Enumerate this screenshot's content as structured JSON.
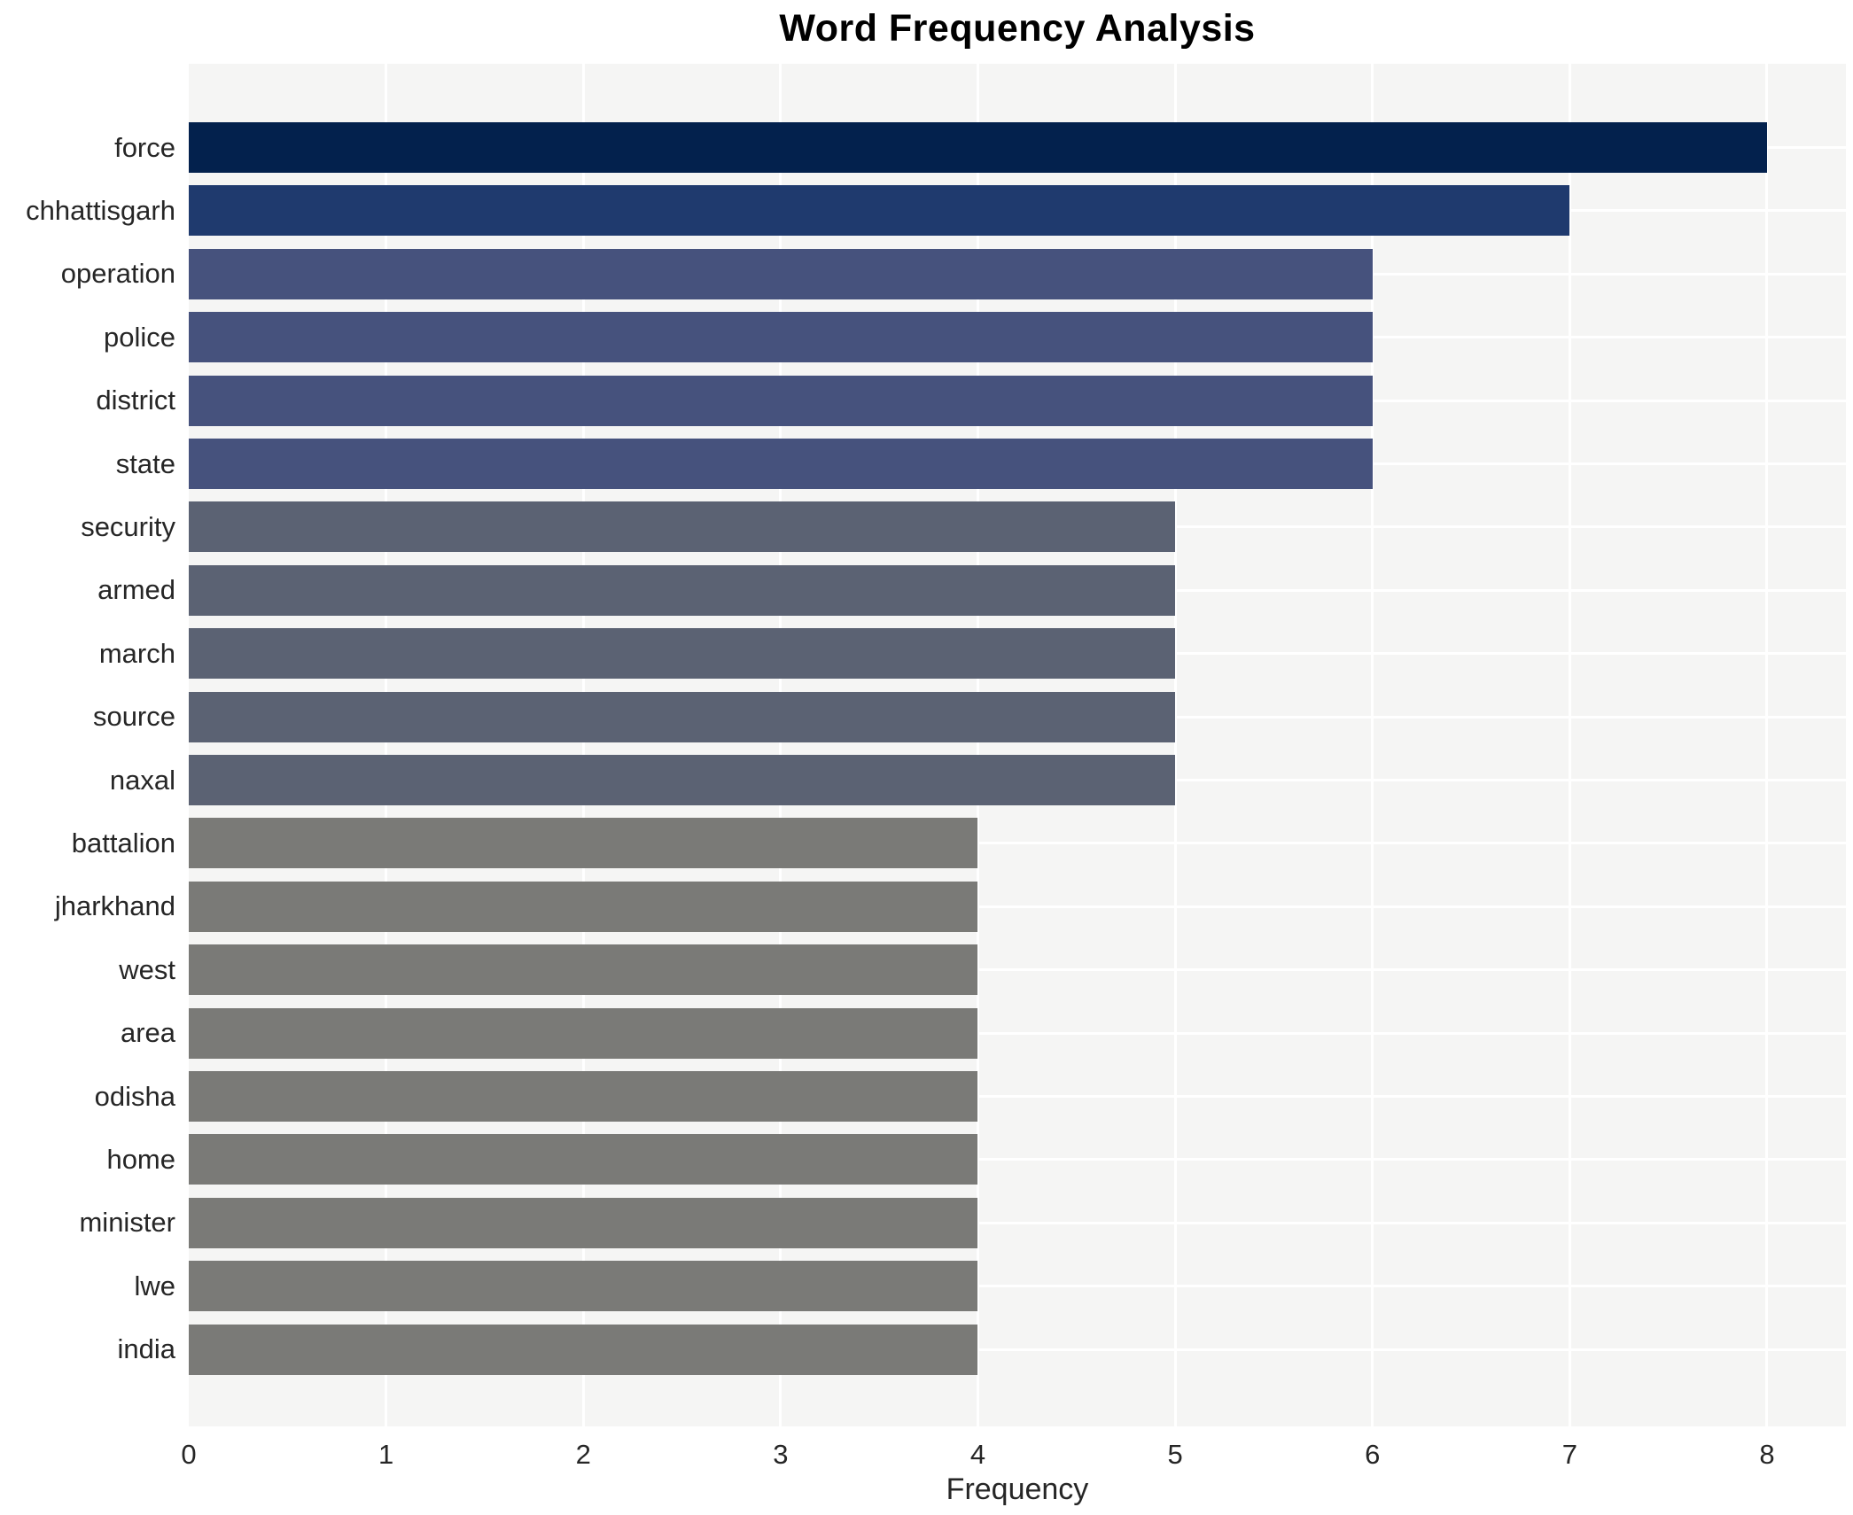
{
  "figure": {
    "title": "Word Frequency Analysis",
    "xlabel": "Frequency"
  },
  "chart_data": {
    "type": "bar",
    "orientation": "horizontal",
    "title": "Word Frequency Analysis",
    "xlabel": "Frequency",
    "ylabel": "",
    "categories": [
      "force",
      "chhattisgarh",
      "operation",
      "police",
      "district",
      "state",
      "security",
      "armed",
      "march",
      "source",
      "naxal",
      "battalion",
      "jharkhand",
      "west",
      "area",
      "odisha",
      "home",
      "minister",
      "lwe",
      "india"
    ],
    "values": [
      8,
      7,
      6,
      6,
      6,
      6,
      5,
      5,
      5,
      5,
      5,
      4,
      4,
      4,
      4,
      4,
      4,
      4,
      4,
      4
    ],
    "xlim": [
      0,
      8.4
    ],
    "xticks": [
      0,
      1,
      2,
      3,
      4,
      5,
      6,
      7,
      8
    ],
    "grid": true,
    "legend": false,
    "colors_by_value": {
      "8": "#03214d",
      "7": "#1f3a6e",
      "6": "#46527d",
      "5": "#5b6273",
      "4": "#7a7a77"
    },
    "plot_bg": "#f5f5f4",
    "grid_color": "#ffffff",
    "text_color": "#262626"
  }
}
